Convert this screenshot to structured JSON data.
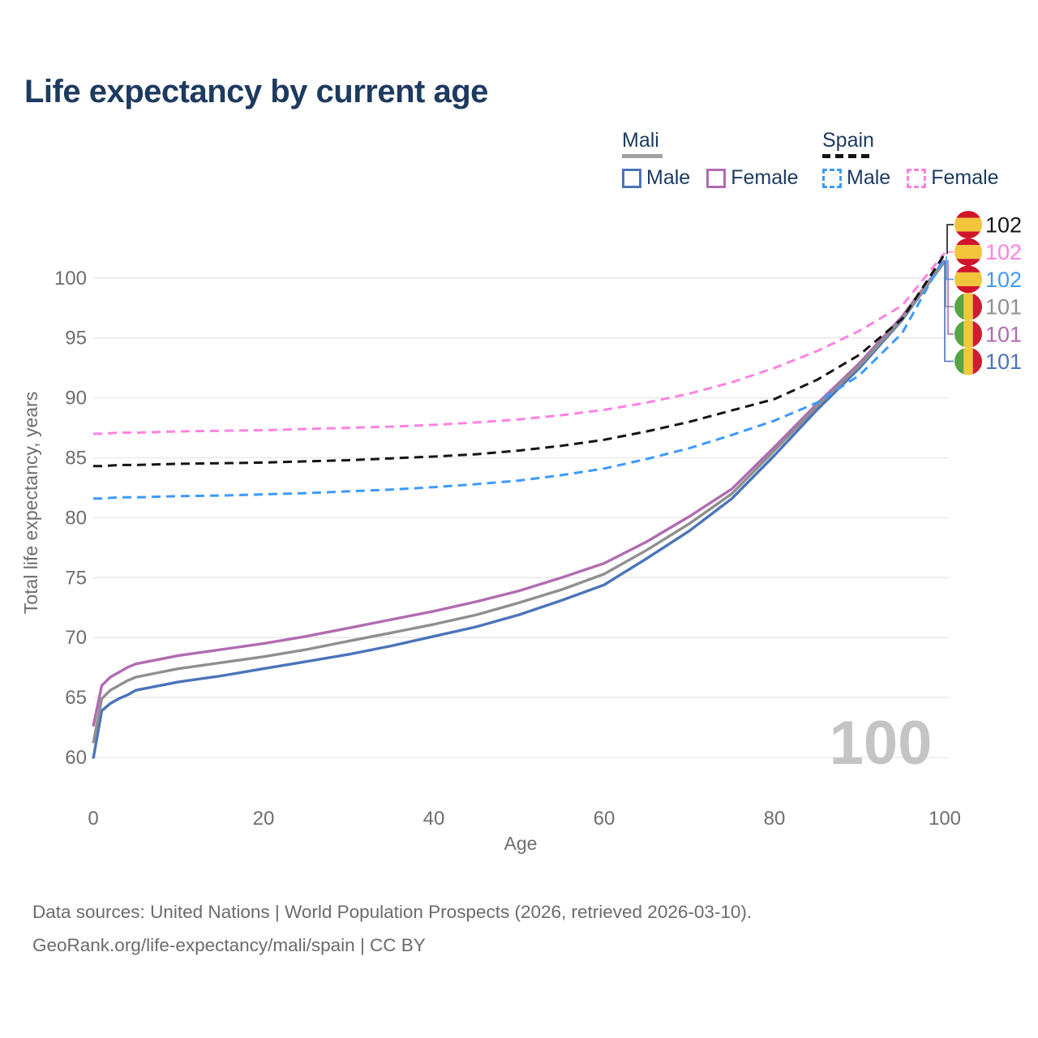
{
  "title": "Life expectancy by current age",
  "legend": {
    "mali": {
      "label": "Mali",
      "male": "Male",
      "female": "Female"
    },
    "spain": {
      "label": "Spain",
      "male": "Male",
      "female": "Female"
    }
  },
  "watermark": "100",
  "footer": {
    "line1": "Data sources: United Nations | World Population Prospects (2026, retrieved 2026-03-10).",
    "line2": "GeoRank.org/life-expectancy/mali/spain | CC BY"
  },
  "colors": {
    "title": "#1d3a5f",
    "grid": "#eaeaea",
    "axis_text": "#6e6e6e",
    "watermark": "#c4c4c4",
    "mali_underline": "#a0a0a0",
    "spain_underline": "#141414",
    "flags": {
      "spain": {
        "red": "#cf142b",
        "yellow": "#f2c53d"
      },
      "mali": {
        "green": "#55a546",
        "yellow": "#f0c83c",
        "red": "#cc1f30"
      }
    }
  },
  "chart_data": {
    "type": "line",
    "title": "Life expectancy by current age",
    "xlabel": "Age",
    "ylabel": "Total life expectancy, years",
    "xlim": [
      0,
      100
    ],
    "ylim": [
      60,
      102.5
    ],
    "x_ticks": [
      0,
      20,
      40,
      60,
      80,
      100
    ],
    "y_ticks": [
      60,
      65,
      70,
      75,
      80,
      85,
      90,
      95,
      100
    ],
    "grid": true,
    "legend_position": "top-right",
    "hover_age_watermark": "100",
    "ages": [
      0,
      1,
      2,
      3,
      4,
      5,
      10,
      15,
      20,
      25,
      30,
      35,
      40,
      45,
      50,
      55,
      60,
      65,
      70,
      75,
      80,
      85,
      90,
      95,
      100
    ],
    "series": [
      {
        "id": "spain-both",
        "name": "Spain Both sexes",
        "country": "Spain",
        "sex": "Both",
        "flag": "spain",
        "color": "#141414",
        "dash": true,
        "end_label": "102",
        "values": [
          84.3,
          84.3,
          84.35,
          84.4,
          84.4,
          84.4,
          84.5,
          84.55,
          84.6,
          84.7,
          84.8,
          84.95,
          85.1,
          85.3,
          85.6,
          86.0,
          86.5,
          87.2,
          88.0,
          88.95,
          89.9,
          91.5,
          93.6,
          96.6,
          102.0
        ]
      },
      {
        "id": "spain-female",
        "name": "Spain Female",
        "country": "Spain",
        "sex": "Female",
        "flag": "spain",
        "color": "#ff82e2",
        "dash": true,
        "end_label": "102",
        "values": [
          87.0,
          87.0,
          87.05,
          87.1,
          87.1,
          87.1,
          87.2,
          87.25,
          87.3,
          87.4,
          87.5,
          87.6,
          87.75,
          87.95,
          88.2,
          88.55,
          89.0,
          89.6,
          90.35,
          91.3,
          92.5,
          93.9,
          95.6,
          97.7,
          102.1
        ]
      },
      {
        "id": "spain-male",
        "name": "Spain Male",
        "country": "Spain",
        "sex": "Male",
        "flag": "spain",
        "color": "#3d9aff",
        "dash": true,
        "end_label": "102",
        "values": [
          81.6,
          81.6,
          81.65,
          81.7,
          81.7,
          81.7,
          81.8,
          81.85,
          81.95,
          82.05,
          82.2,
          82.35,
          82.55,
          82.8,
          83.1,
          83.55,
          84.1,
          84.9,
          85.8,
          86.9,
          88.1,
          89.6,
          91.9,
          95.4,
          101.8
        ]
      },
      {
        "id": "mali-both",
        "name": "Mali Both sexes",
        "country": "Mali",
        "sex": "Both",
        "flag": "mali",
        "color": "#8f8f8f",
        "dash": false,
        "end_label": "101",
        "values": [
          61.2,
          64.9,
          65.6,
          66.0,
          66.4,
          66.7,
          67.4,
          67.9,
          68.4,
          69.0,
          69.7,
          70.4,
          71.1,
          71.9,
          72.9,
          74.0,
          75.3,
          77.3,
          79.5,
          82.0,
          85.6,
          89.3,
          92.7,
          96.6,
          101.45
        ]
      },
      {
        "id": "mali-female",
        "name": "Mali Female",
        "country": "Mali",
        "sex": "Female",
        "flag": "mali",
        "color": "#b16bb1",
        "dash": false,
        "end_label": "101",
        "values": [
          62.6,
          66.0,
          66.7,
          67.1,
          67.5,
          67.8,
          68.5,
          69.0,
          69.5,
          70.1,
          70.8,
          71.5,
          72.2,
          73.0,
          73.9,
          75.0,
          76.2,
          78.0,
          80.1,
          82.4,
          85.9,
          89.5,
          92.9,
          96.8,
          101.5
        ]
      },
      {
        "id": "mali-male",
        "name": "Mali Male",
        "country": "Mali",
        "sex": "Male",
        "flag": "mali",
        "color": "#4a74ba",
        "dash": false,
        "end_label": "101",
        "values": [
          59.9,
          63.9,
          64.5,
          64.9,
          65.2,
          65.6,
          66.3,
          66.8,
          67.4,
          68.0,
          68.6,
          69.3,
          70.1,
          70.9,
          71.9,
          73.1,
          74.4,
          76.6,
          78.9,
          81.6,
          85.2,
          89.0,
          92.5,
          96.5,
          101.4
        ]
      }
    ]
  }
}
